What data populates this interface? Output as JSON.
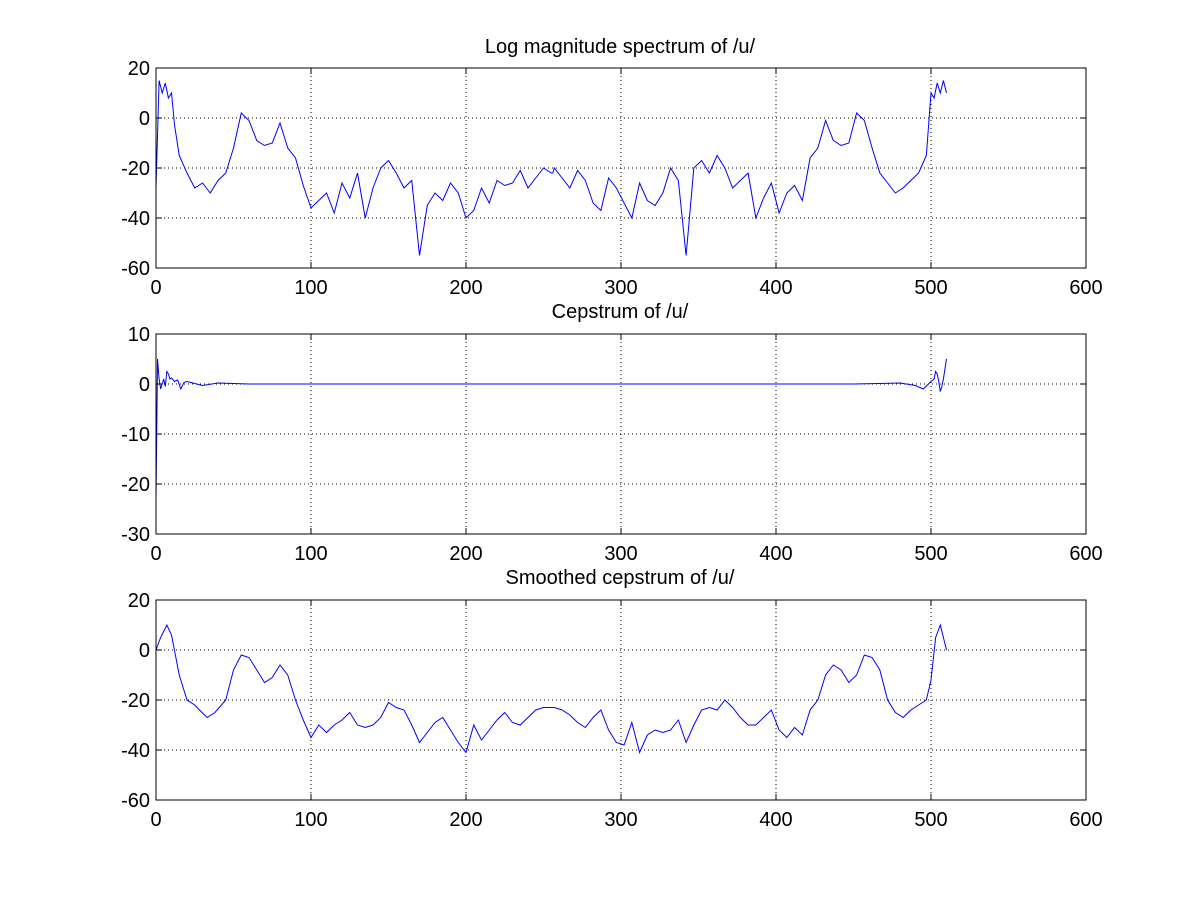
{
  "colors": {
    "line": "#0000ff",
    "axis": "#000000",
    "grid": "#000000",
    "background": "#ffffff"
  },
  "chart_data": [
    {
      "type": "line",
      "title": "Log magnitude spectrum of /u/",
      "xlabel": "",
      "ylabel": "",
      "xlim": [
        0,
        600
      ],
      "ylim": [
        -60,
        20
      ],
      "xticks": [
        "0",
        "100",
        "200",
        "300",
        "400",
        "500",
        "600"
      ],
      "yticks": [
        "20",
        "0",
        "-20",
        "-40",
        "-60"
      ],
      "grid": true,
      "series": [
        {
          "x": [
            0,
            2,
            4,
            6,
            8,
            10,
            12,
            15,
            20,
            25,
            30,
            35,
            40,
            45,
            50,
            55,
            60,
            65,
            70,
            75,
            80,
            85,
            90,
            95,
            100,
            105,
            110,
            115,
            120,
            125,
            130,
            135,
            140,
            145,
            150,
            155,
            160,
            165,
            170,
            175,
            180,
            185,
            190,
            195,
            200,
            205,
            210,
            215,
            220,
            225,
            230,
            235,
            240,
            245,
            250,
            255,
            256,
            257,
            262,
            267,
            272,
            277,
            282,
            287,
            292,
            297,
            302,
            307,
            312,
            317,
            322,
            327,
            332,
            337,
            342,
            347,
            352,
            357,
            362,
            367,
            372,
            377,
            382,
            387,
            392,
            397,
            402,
            407,
            412,
            417,
            422,
            427,
            432,
            437,
            442,
            447,
            452,
            457,
            462,
            467,
            472,
            477,
            482,
            487,
            492,
            497,
            500,
            502,
            504,
            506,
            508,
            510
          ],
          "y": [
            -28,
            15,
            10,
            14,
            8,
            10,
            -3,
            -15,
            -22,
            -28,
            -26,
            -30,
            -25,
            -22,
            -12,
            2,
            -1,
            -9,
            -11,
            -10,
            -2,
            -12,
            -16,
            -27,
            -36,
            -33,
            -30,
            -38,
            -26,
            -32,
            -22,
            -40,
            -28,
            -20,
            -17,
            -22,
            -28,
            -25,
            -55,
            -35,
            -30,
            -33,
            -26,
            -30,
            -40,
            -37,
            -28,
            -34,
            -25,
            -27,
            -26,
            -21,
            -28,
            -24,
            -20,
            -22,
            -22,
            -20,
            -24,
            -28,
            -21,
            -25,
            -34,
            -37,
            -24,
            -28,
            -34,
            -40,
            -26,
            -33,
            -35,
            -30,
            -20,
            -25,
            -55,
            -20,
            -17,
            -22,
            -15,
            -20,
            -28,
            -25,
            -22,
            -40,
            -32,
            -26,
            -38,
            -30,
            -27,
            -33,
            -16,
            -12,
            -1,
            -9,
            -11,
            -10,
            2,
            -1,
            -12,
            -22,
            -26,
            -30,
            -28,
            -25,
            -22,
            -15,
            10,
            8,
            14,
            10,
            15,
            10
          ]
        }
      ]
    },
    {
      "type": "line",
      "title": "Cepstrum of /u/",
      "xlabel": "",
      "ylabel": "",
      "xlim": [
        0,
        600
      ],
      "ylim": [
        -30,
        10
      ],
      "xticks": [
        "0",
        "100",
        "200",
        "300",
        "400",
        "500",
        "600"
      ],
      "yticks": [
        "10",
        "0",
        "-10",
        "-20",
        "-30"
      ],
      "grid": true,
      "series": [
        {
          "x": [
            0,
            1,
            2,
            3,
            4,
            5,
            6,
            7,
            8,
            9,
            10,
            12,
            14,
            16,
            18,
            20,
            25,
            30,
            40,
            60,
            100,
            150,
            200,
            250,
            256,
            300,
            350,
            400,
            450,
            480,
            490,
            495,
            500,
            502,
            503,
            504,
            505,
            506,
            507,
            508,
            509,
            510
          ],
          "y": [
            -23,
            5,
            1,
            -1,
            0,
            1,
            -0.5,
            2.5,
            2,
            1,
            1.2,
            0.5,
            0.8,
            -1,
            0.3,
            0.5,
            0.1,
            -0.3,
            0.2,
            0,
            0,
            0,
            0,
            0,
            0,
            0,
            0,
            0,
            0,
            0.2,
            -0.3,
            -1,
            0.5,
            1,
            2.5,
            2,
            0.5,
            -1.5,
            -0.5,
            1,
            3,
            5
          ]
        }
      ]
    },
    {
      "type": "line",
      "title": "Smoothed cepstrum of /u/",
      "xlabel": "",
      "ylabel": "",
      "xlim": [
        0,
        600
      ],
      "ylim": [
        -60,
        20
      ],
      "xticks": [
        "0",
        "100",
        "200",
        "300",
        "400",
        "500",
        "600"
      ],
      "yticks": [
        "20",
        "0",
        "-20",
        "-40",
        "-60"
      ],
      "grid": true,
      "series": [
        {
          "x": [
            0,
            3,
            7,
            10,
            15,
            20,
            25,
            28,
            33,
            38,
            45,
            50,
            55,
            60,
            65,
            70,
            75,
            80,
            85,
            90,
            95,
            100,
            105,
            110,
            115,
            120,
            125,
            130,
            135,
            140,
            145,
            150,
            155,
            160,
            165,
            170,
            175,
            180,
            185,
            190,
            195,
            200,
            205,
            210,
            215,
            220,
            225,
            230,
            235,
            240,
            245,
            250,
            255,
            256,
            257,
            262,
            267,
            272,
            277,
            282,
            287,
            292,
            297,
            302,
            307,
            312,
            317,
            322,
            327,
            332,
            337,
            342,
            347,
            352,
            357,
            362,
            367,
            372,
            377,
            382,
            387,
            392,
            397,
            402,
            407,
            412,
            417,
            422,
            427,
            432,
            437,
            442,
            447,
            452,
            457,
            462,
            467,
            472,
            477,
            482,
            487,
            492,
            497,
            500,
            503,
            506,
            510
          ],
          "y": [
            0,
            5,
            10,
            6,
            -10,
            -20,
            -22,
            -24,
            -27,
            -25,
            -20,
            -8,
            -2,
            -3,
            -8,
            -13,
            -11,
            -6,
            -10,
            -20,
            -28,
            -35,
            -30,
            -33,
            -30,
            -28,
            -25,
            -30,
            -31,
            -30,
            -27,
            -21,
            -23,
            -24,
            -30,
            -37,
            -33,
            -29,
            -27,
            -32,
            -37,
            -41,
            -30,
            -36,
            -32,
            -28,
            -25,
            -29,
            -30,
            -27,
            -24,
            -23,
            -23,
            -23,
            -23,
            -24,
            -26,
            -29,
            -31,
            -27,
            -24,
            -32,
            -37,
            -38,
            -29,
            -41,
            -34,
            -32,
            -33,
            -32,
            -28,
            -37,
            -30,
            -24,
            -23,
            -24,
            -20,
            -23,
            -27,
            -30,
            -30,
            -27,
            -24,
            -32,
            -35,
            -31,
            -34,
            -24,
            -20,
            -10,
            -6,
            -8,
            -13,
            -10,
            -2,
            -3,
            -8,
            -20,
            -25,
            -27,
            -24,
            -22,
            -20,
            -12,
            5,
            10,
            0
          ]
        }
      ]
    }
  ]
}
